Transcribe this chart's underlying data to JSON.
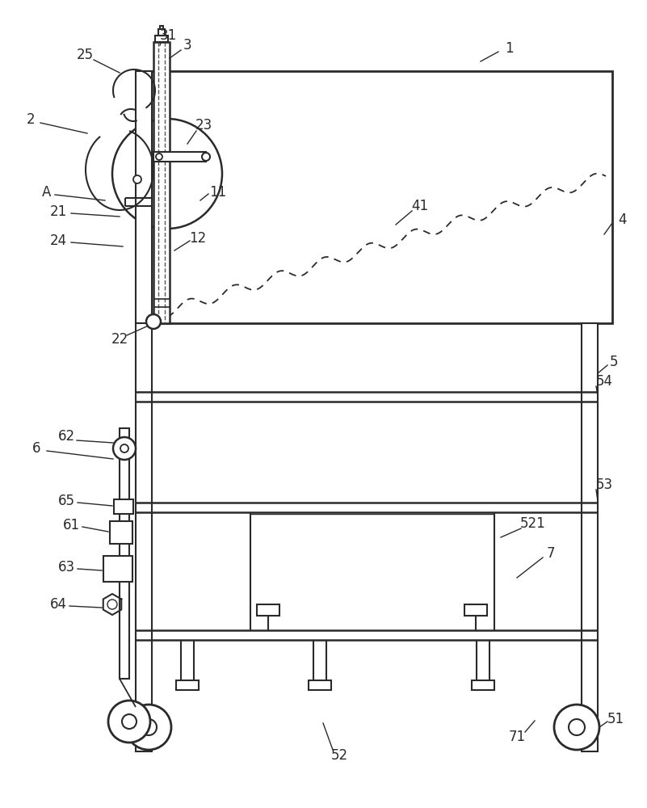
{
  "bg_color": "#ffffff",
  "line_color": "#2a2a2a",
  "figsize": [
    8.01,
    10.0
  ],
  "dpi": 100
}
